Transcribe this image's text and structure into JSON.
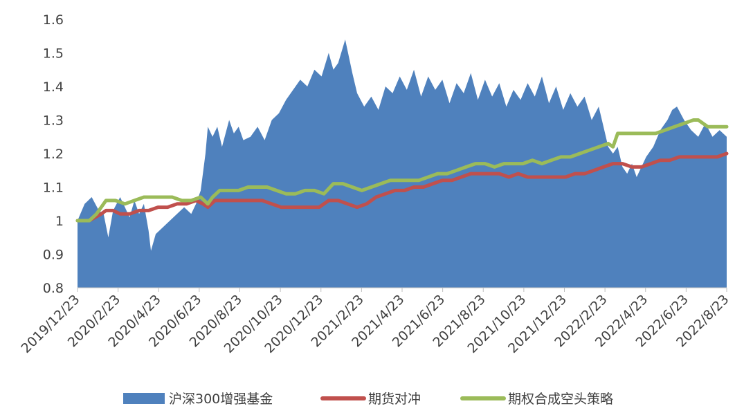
{
  "chart_data": {
    "type": "area",
    "title": "",
    "xlabel": "",
    "ylabel": "",
    "ylim": [
      0.8,
      1.6
    ],
    "yticks": [
      "0.8",
      "0.9",
      "1",
      "1.1",
      "1.2",
      "1.3",
      "1.4",
      "1.5",
      "1.6"
    ],
    "xticks": [
      "2019/12/23",
      "2020/2/23",
      "2020/4/23",
      "2020/6/23",
      "2020/8/23",
      "2020/10/23",
      "2020/12/23",
      "2021/2/23",
      "2021/4/23",
      "2021/6/23",
      "2021/8/23",
      "2021/10/23",
      "2021/12/23",
      "2022/2/23",
      "2022/4/23",
      "2022/6/23",
      "2022/8/23"
    ],
    "grid": false,
    "legend_position": "bottom",
    "series": [
      {
        "name": "沪深300增强基金",
        "style": "area",
        "color": "#4f81bd",
        "points": [
          [
            0,
            1.0
          ],
          [
            0.3,
            1.05
          ],
          [
            0.6,
            1.07
          ],
          [
            0.9,
            1.03
          ],
          [
            1.1,
            1.02
          ],
          [
            1.3,
            0.95
          ],
          [
            1.5,
            1.03
          ],
          [
            1.8,
            1.07
          ],
          [
            2.0,
            1.04
          ],
          [
            2.2,
            1.01
          ],
          [
            2.4,
            1.06
          ],
          [
            2.6,
            1.02
          ],
          [
            2.8,
            1.05
          ],
          [
            3.0,
            0.97
          ],
          [
            3.1,
            0.91
          ],
          [
            3.3,
            0.96
          ],
          [
            3.6,
            0.98
          ],
          [
            3.9,
            1.0
          ],
          [
            4.2,
            1.02
          ],
          [
            4.5,
            1.04
          ],
          [
            4.8,
            1.02
          ],
          [
            5.0,
            1.05
          ],
          [
            5.2,
            1.09
          ],
          [
            5.4,
            1.2
          ],
          [
            5.5,
            1.28
          ],
          [
            5.7,
            1.25
          ],
          [
            5.9,
            1.28
          ],
          [
            6.1,
            1.22
          ],
          [
            6.4,
            1.3
          ],
          [
            6.6,
            1.26
          ],
          [
            6.8,
            1.28
          ],
          [
            7.0,
            1.24
          ],
          [
            7.3,
            1.25
          ],
          [
            7.6,
            1.28
          ],
          [
            7.9,
            1.24
          ],
          [
            8.2,
            1.3
          ],
          [
            8.5,
            1.32
          ],
          [
            8.8,
            1.36
          ],
          [
            9.1,
            1.39
          ],
          [
            9.4,
            1.42
          ],
          [
            9.7,
            1.4
          ],
          [
            10.0,
            1.45
          ],
          [
            10.3,
            1.43
          ],
          [
            10.6,
            1.5
          ],
          [
            10.8,
            1.45
          ],
          [
            11.0,
            1.47
          ],
          [
            11.3,
            1.54
          ],
          [
            11.6,
            1.44
          ],
          [
            11.8,
            1.38
          ],
          [
            12.1,
            1.34
          ],
          [
            12.4,
            1.37
          ],
          [
            12.7,
            1.33
          ],
          [
            13.0,
            1.4
          ],
          [
            13.3,
            1.38
          ],
          [
            13.6,
            1.43
          ],
          [
            13.9,
            1.39
          ],
          [
            14.2,
            1.45
          ],
          [
            14.5,
            1.37
          ],
          [
            14.8,
            1.43
          ],
          [
            15.1,
            1.39
          ],
          [
            15.4,
            1.42
          ],
          [
            15.7,
            1.35
          ],
          [
            16.0,
            1.41
          ],
          [
            16.3,
            1.38
          ],
          [
            16.6,
            1.44
          ],
          [
            16.9,
            1.36
          ],
          [
            17.2,
            1.42
          ],
          [
            17.5,
            1.37
          ],
          [
            17.8,
            1.41
          ],
          [
            18.1,
            1.34
          ],
          [
            18.4,
            1.39
          ],
          [
            18.7,
            1.36
          ],
          [
            19.0,
            1.41
          ],
          [
            19.3,
            1.37
          ],
          [
            19.6,
            1.43
          ],
          [
            19.9,
            1.35
          ],
          [
            20.2,
            1.4
          ],
          [
            20.5,
            1.33
          ],
          [
            20.8,
            1.38
          ],
          [
            21.1,
            1.34
          ],
          [
            21.4,
            1.37
          ],
          [
            21.7,
            1.3
          ],
          [
            22.0,
            1.34
          ],
          [
            22.2,
            1.28
          ],
          [
            22.4,
            1.22
          ],
          [
            22.6,
            1.2
          ],
          [
            22.8,
            1.22
          ],
          [
            23.0,
            1.16
          ],
          [
            23.2,
            1.14
          ],
          [
            23.4,
            1.17
          ],
          [
            23.6,
            1.13
          ],
          [
            23.8,
            1.16
          ],
          [
            24.0,
            1.19
          ],
          [
            24.3,
            1.22
          ],
          [
            24.6,
            1.27
          ],
          [
            24.9,
            1.3
          ],
          [
            25.1,
            1.33
          ],
          [
            25.3,
            1.34
          ],
          [
            25.6,
            1.3
          ],
          [
            25.9,
            1.27
          ],
          [
            26.2,
            1.25
          ],
          [
            26.5,
            1.29
          ],
          [
            26.8,
            1.25
          ],
          [
            27.1,
            1.27
          ],
          [
            27.4,
            1.25
          ]
        ]
      },
      {
        "name": "期货对冲",
        "style": "line",
        "color": "#c0504d",
        "points": [
          [
            0,
            1.0
          ],
          [
            0.5,
            1.0
          ],
          [
            1.0,
            1.02
          ],
          [
            1.2,
            1.03
          ],
          [
            1.5,
            1.03
          ],
          [
            1.8,
            1.02
          ],
          [
            2.2,
            1.02
          ],
          [
            2.6,
            1.03
          ],
          [
            3.0,
            1.03
          ],
          [
            3.4,
            1.04
          ],
          [
            3.8,
            1.04
          ],
          [
            4.2,
            1.05
          ],
          [
            4.6,
            1.05
          ],
          [
            5.0,
            1.06
          ],
          [
            5.3,
            1.05
          ],
          [
            5.5,
            1.04
          ],
          [
            5.8,
            1.06
          ],
          [
            6.2,
            1.06
          ],
          [
            6.6,
            1.06
          ],
          [
            7.0,
            1.06
          ],
          [
            7.4,
            1.06
          ],
          [
            7.8,
            1.06
          ],
          [
            8.2,
            1.05
          ],
          [
            8.6,
            1.04
          ],
          [
            9.0,
            1.04
          ],
          [
            9.4,
            1.04
          ],
          [
            9.8,
            1.04
          ],
          [
            10.2,
            1.04
          ],
          [
            10.6,
            1.06
          ],
          [
            11.0,
            1.06
          ],
          [
            11.4,
            1.05
          ],
          [
            11.8,
            1.04
          ],
          [
            12.2,
            1.05
          ],
          [
            12.6,
            1.07
          ],
          [
            13.0,
            1.08
          ],
          [
            13.4,
            1.09
          ],
          [
            13.8,
            1.09
          ],
          [
            14.2,
            1.1
          ],
          [
            14.6,
            1.1
          ],
          [
            15.0,
            1.11
          ],
          [
            15.4,
            1.12
          ],
          [
            15.8,
            1.12
          ],
          [
            16.2,
            1.13
          ],
          [
            16.6,
            1.14
          ],
          [
            17.0,
            1.14
          ],
          [
            17.4,
            1.14
          ],
          [
            17.8,
            1.14
          ],
          [
            18.2,
            1.13
          ],
          [
            18.6,
            1.14
          ],
          [
            19.0,
            1.13
          ],
          [
            19.4,
            1.13
          ],
          [
            19.8,
            1.13
          ],
          [
            20.2,
            1.13
          ],
          [
            20.6,
            1.13
          ],
          [
            21.0,
            1.14
          ],
          [
            21.4,
            1.14
          ],
          [
            21.8,
            1.15
          ],
          [
            22.2,
            1.16
          ],
          [
            22.6,
            1.17
          ],
          [
            23.0,
            1.17
          ],
          [
            23.4,
            1.16
          ],
          [
            23.8,
            1.16
          ],
          [
            24.2,
            1.17
          ],
          [
            24.6,
            1.18
          ],
          [
            25.0,
            1.18
          ],
          [
            25.4,
            1.19
          ],
          [
            25.8,
            1.19
          ],
          [
            26.2,
            1.19
          ],
          [
            26.6,
            1.19
          ],
          [
            27.0,
            1.19
          ],
          [
            27.4,
            1.2
          ]
        ]
      },
      {
        "name": "期权合成空头策略",
        "style": "line",
        "color": "#9bbb59",
        "points": [
          [
            0,
            1.0
          ],
          [
            0.5,
            1.0
          ],
          [
            0.8,
            1.02
          ],
          [
            1.2,
            1.06
          ],
          [
            1.6,
            1.06
          ],
          [
            2.0,
            1.05
          ],
          [
            2.4,
            1.06
          ],
          [
            2.8,
            1.07
          ],
          [
            3.2,
            1.07
          ],
          [
            3.6,
            1.07
          ],
          [
            4.0,
            1.07
          ],
          [
            4.4,
            1.06
          ],
          [
            4.8,
            1.06
          ],
          [
            5.2,
            1.07
          ],
          [
            5.5,
            1.05
          ],
          [
            5.7,
            1.07
          ],
          [
            6.0,
            1.09
          ],
          [
            6.4,
            1.09
          ],
          [
            6.8,
            1.09
          ],
          [
            7.2,
            1.1
          ],
          [
            7.6,
            1.1
          ],
          [
            8.0,
            1.1
          ],
          [
            8.4,
            1.09
          ],
          [
            8.8,
            1.08
          ],
          [
            9.2,
            1.08
          ],
          [
            9.6,
            1.09
          ],
          [
            10.0,
            1.09
          ],
          [
            10.4,
            1.08
          ],
          [
            10.8,
            1.11
          ],
          [
            11.2,
            1.11
          ],
          [
            11.6,
            1.1
          ],
          [
            12.0,
            1.09
          ],
          [
            12.4,
            1.1
          ],
          [
            12.8,
            1.11
          ],
          [
            13.2,
            1.12
          ],
          [
            13.6,
            1.12
          ],
          [
            14.0,
            1.12
          ],
          [
            14.4,
            1.12
          ],
          [
            14.8,
            1.13
          ],
          [
            15.2,
            1.14
          ],
          [
            15.6,
            1.14
          ],
          [
            16.0,
            1.15
          ],
          [
            16.4,
            1.16
          ],
          [
            16.8,
            1.17
          ],
          [
            17.2,
            1.17
          ],
          [
            17.6,
            1.16
          ],
          [
            18.0,
            1.17
          ],
          [
            18.4,
            1.17
          ],
          [
            18.8,
            1.17
          ],
          [
            19.2,
            1.18
          ],
          [
            19.6,
            1.17
          ],
          [
            20.0,
            1.18
          ],
          [
            20.4,
            1.19
          ],
          [
            20.8,
            1.19
          ],
          [
            21.2,
            1.2
          ],
          [
            21.6,
            1.21
          ],
          [
            22.0,
            1.22
          ],
          [
            22.4,
            1.23
          ],
          [
            22.6,
            1.22
          ],
          [
            22.8,
            1.26
          ],
          [
            23.2,
            1.26
          ],
          [
            23.6,
            1.26
          ],
          [
            24.0,
            1.26
          ],
          [
            24.4,
            1.26
          ],
          [
            24.8,
            1.27
          ],
          [
            25.2,
            1.28
          ],
          [
            25.6,
            1.29
          ],
          [
            26.0,
            1.3
          ],
          [
            26.2,
            1.3
          ],
          [
            26.4,
            1.29
          ],
          [
            26.6,
            1.28
          ],
          [
            27.0,
            1.28
          ],
          [
            27.4,
            1.28
          ]
        ]
      }
    ]
  }
}
